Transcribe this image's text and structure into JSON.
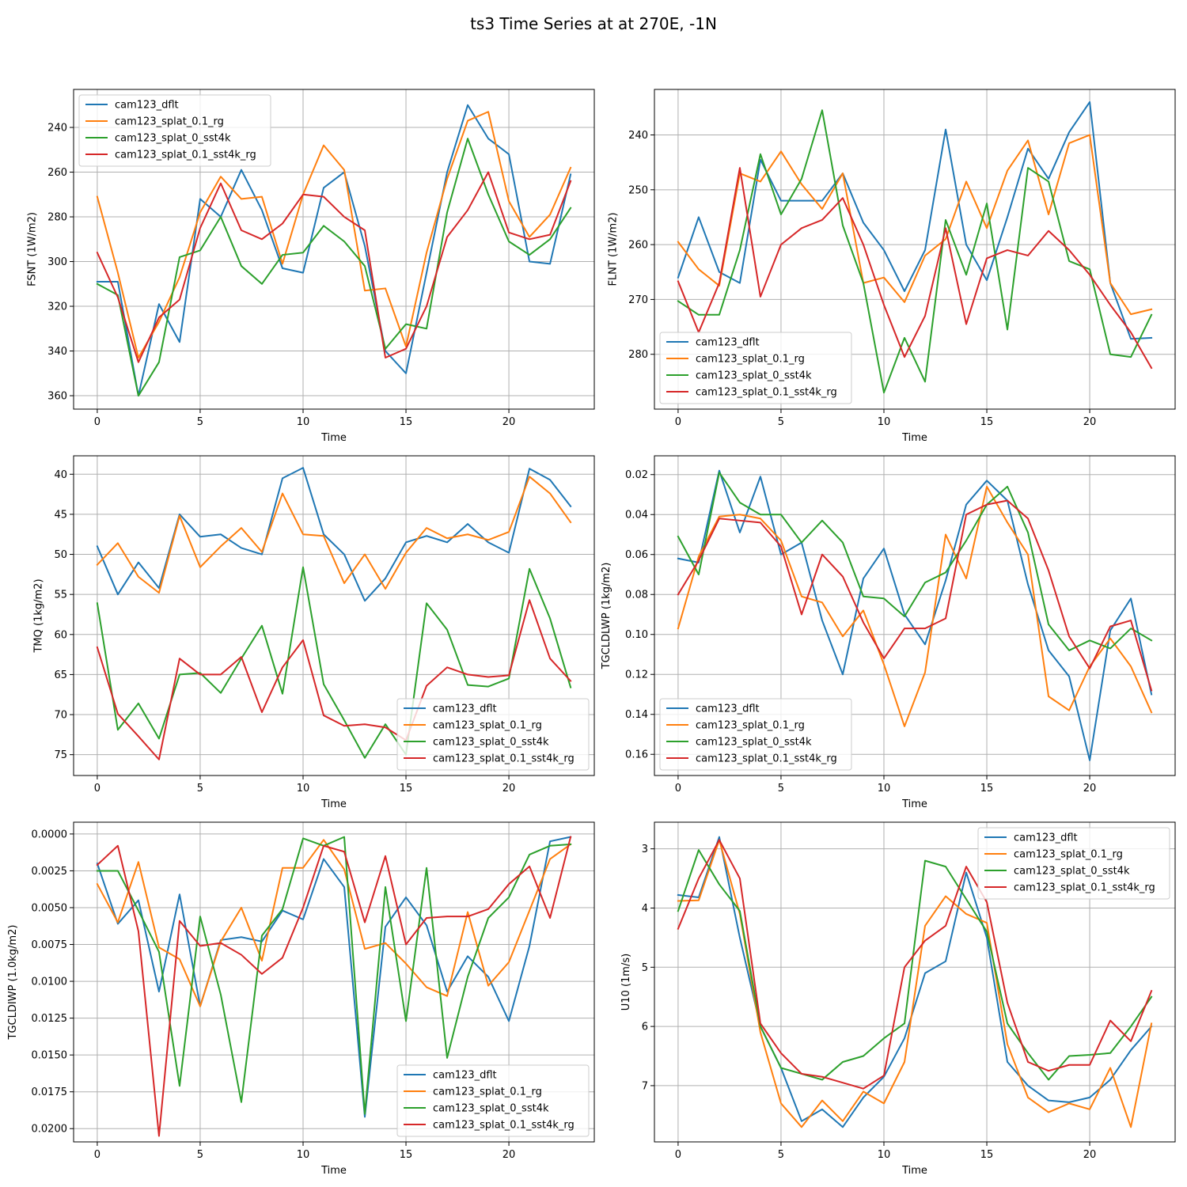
{
  "chart_data": {
    "suptitle": "ts3 Time Series at at 270E, -1N",
    "type": "line",
    "x": [
      0,
      1,
      2,
      3,
      4,
      5,
      6,
      7,
      8,
      9,
      10,
      11,
      12,
      13,
      14,
      15,
      16,
      17,
      18,
      19,
      20,
      21,
      22,
      23
    ],
    "colors": {
      "cam123_dflt": "#1f77b4",
      "cam123_splat_0.1_rg": "#ff7f0e",
      "cam123_splat_0_sst4k": "#2ca02c",
      "cam123_splat_0.1_sst4k_rg": "#d62728"
    },
    "panels": [
      {
        "id": "fsnt",
        "xlabel": "Time",
        "ylabel": "FSNT (1W/m2)",
        "xlim": [
          -1.15,
          24.15
        ],
        "ylim": [
          366,
          223
        ],
        "y_inverted": true,
        "xticks": [
          0,
          5,
          10,
          15,
          20
        ],
        "yticks": [
          240,
          260,
          280,
          300,
          320,
          340,
          360
        ],
        "ytick_labels": [
          "240",
          "260",
          "280",
          "300",
          "320",
          "340",
          "360"
        ],
        "legend_loc": "upper left",
        "series": [
          {
            "name": "cam123_dflt",
            "values": [
              309,
              309,
              360,
              319,
              336,
              272,
              280,
              259,
              277,
              303,
              305,
              267,
              260,
              293,
              340,
              350,
              305,
              260,
              230,
              245,
              252,
              300,
              301,
              261
            ]
          },
          {
            "name": "cam123_splat_0.1_rg",
            "values": [
              271,
              305,
              343,
              327,
              307,
              278,
              262,
              272,
              271,
              301,
              270,
              248,
              259,
              313,
              312,
              338,
              296,
              263,
              237,
              233,
              273,
              289,
              279,
              258
            ]
          },
          {
            "name": "cam123_splat_0_sst4k",
            "values": [
              310,
              315,
              360,
              345,
              298,
              295,
              280,
              302,
              310,
              297,
              296,
              284,
              291,
              302,
              339,
              328,
              330,
              278,
              245,
              270,
              291,
              297,
              290,
              276
            ]
          },
          {
            "name": "cam123_splat_0.1_sst4k_rg",
            "values": [
              296,
              316,
              345,
              325,
              317,
              285,
              265,
              286,
              290,
              283,
              270,
              271,
              280,
              286,
              343,
              339,
              320,
              289,
              277,
              260,
              287,
              290,
              288,
              264
            ]
          }
        ]
      },
      {
        "id": "flnt",
        "xlabel": "Time",
        "ylabel": "FLNT (1W/m2)",
        "xlim": [
          -1.15,
          24.15
        ],
        "ylim": [
          290,
          231.7
        ],
        "y_inverted": true,
        "xticks": [
          0,
          5,
          10,
          15,
          20
        ],
        "yticks": [
          240,
          250,
          260,
          270,
          280
        ],
        "ytick_labels": [
          "240",
          "250",
          "260",
          "270",
          "280"
        ],
        "legend_loc": "lower left",
        "series": [
          {
            "name": "cam123_dflt",
            "values": [
              266,
              255,
              265,
              267,
              244.5,
              252,
              252,
              252,
              247,
              256,
              261,
              268.5,
              261,
              239,
              260,
              266.5,
              255,
              242.5,
              248,
              239.5,
              234,
              267,
              277.2,
              277
            ]
          },
          {
            "name": "cam123_splat_0.1_rg",
            "values": [
              259.5,
              264.5,
              267.5,
              247,
              248.5,
              243,
              249,
              253.5,
              247,
              267,
              266,
              270.5,
              262,
              259,
              248.5,
              257,
              246.5,
              241,
              254.5,
              241.5,
              240,
              267,
              272.7,
              271.8
            ]
          },
          {
            "name": "cam123_splat_0_sst4k",
            "values": [
              270.3,
              272.8,
              272.8,
              261,
              243.5,
              254.5,
              248,
              235.5,
              256.5,
              267,
              287,
              277,
              285,
              255.5,
              265.5,
              252.5,
              275.5,
              246,
              248.5,
              263,
              264.5,
              280,
              280.5,
              272.8
            ]
          },
          {
            "name": "cam123_splat_0.1_sst4k_rg",
            "values": [
              266.7,
              276,
              267,
              246,
              269.5,
              260,
              257,
              255.5,
              251.5,
              260,
              271,
              280.5,
              273,
              257,
              274.5,
              262.5,
              261,
              262,
              257.5,
              261,
              265.5,
              271,
              276,
              282.5
            ]
          }
        ]
      },
      {
        "id": "tmq",
        "xlabel": "Time",
        "ylabel": "TMQ (1kg/m2)",
        "xlim": [
          -1.15,
          24.15
        ],
        "ylim": [
          77.6,
          37.7
        ],
        "y_inverted": true,
        "xticks": [
          0,
          5,
          10,
          15,
          20
        ],
        "yticks": [
          40,
          45,
          50,
          55,
          60,
          65,
          70,
          75
        ],
        "ytick_labels": [
          "40",
          "45",
          "50",
          "55",
          "60",
          "65",
          "70",
          "75"
        ],
        "legend_loc": "lower right",
        "series": [
          {
            "name": "cam123_dflt",
            "values": [
              49,
              55,
              51,
              54.2,
              45,
              47.8,
              47.5,
              49.2,
              50,
              40.5,
              39.2,
              47.5,
              50,
              55.8,
              53,
              48.5,
              47.7,
              48.5,
              46.2,
              48.5,
              49.8,
              39.3,
              40.7,
              44
            ]
          },
          {
            "name": "cam123_splat_0.1_rg",
            "values": [
              51.3,
              48.6,
              52.8,
              54.8,
              45.2,
              51.6,
              49,
              46.7,
              49.7,
              42.4,
              47.5,
              47.7,
              53.6,
              50,
              54.3,
              49.8,
              46.7,
              48,
              47.5,
              48.2,
              47.2,
              40.3,
              42.4,
              46
            ]
          },
          {
            "name": "cam123_splat_0_sst4k",
            "values": [
              56.1,
              71.9,
              68.6,
              73,
              65,
              64.8,
              67.3,
              63,
              58.9,
              67.4,
              51.6,
              66.2,
              70.7,
              75.4,
              71.2,
              75,
              56.1,
              59.4,
              66.3,
              66.5,
              65.5,
              51.8,
              58,
              66.6
            ]
          },
          {
            "name": "cam123_splat_0.1_sst4k_rg",
            "values": [
              61.6,
              69.9,
              72.7,
              75.6,
              63,
              65,
              65,
              62.8,
              69.7,
              64.1,
              60.7,
              70.1,
              71.4,
              71.2,
              71.6,
              73.2,
              66.4,
              64.1,
              65,
              65.3,
              65.1,
              55.7,
              63,
              65.8
            ]
          }
        ]
      },
      {
        "id": "tgcldlwp",
        "xlabel": "Time",
        "ylabel": "TGCLDLWP (1kg/m2)",
        "xlim": [
          -1.15,
          24.15
        ],
        "ylim": [
          0.1706,
          0.0106
        ],
        "y_inverted": true,
        "xticks": [
          0,
          5,
          10,
          15,
          20
        ],
        "yticks": [
          0.02,
          0.04,
          0.06,
          0.08,
          0.1,
          0.12,
          0.14,
          0.16
        ],
        "ytick_labels": [
          "0.02",
          "0.04",
          "0.06",
          "0.08",
          "0.10",
          "0.12",
          "0.14",
          "0.16"
        ],
        "legend_loc": "lower left",
        "series": [
          {
            "name": "cam123_dflt",
            "values": [
              0.062,
              0.064,
              0.018,
              0.049,
              0.021,
              0.06,
              0.054,
              0.093,
              0.12,
              0.072,
              0.057,
              0.09,
              0.105,
              0.073,
              0.035,
              0.023,
              0.033,
              0.075,
              0.108,
              0.121,
              0.163,
              0.098,
              0.082,
              0.13
            ]
          },
          {
            "name": "cam123_splat_0.1_rg",
            "values": [
              0.097,
              0.061,
              0.041,
              0.04,
              0.042,
              0.053,
              0.081,
              0.084,
              0.101,
              0.088,
              0.115,
              0.146,
              0.119,
              0.05,
              0.072,
              0.026,
              0.044,
              0.06,
              0.131,
              0.138,
              0.116,
              0.102,
              0.116,
              0.139
            ]
          },
          {
            "name": "cam123_splat_0_sst4k",
            "values": [
              0.051,
              0.07,
              0.019,
              0.034,
              0.04,
              0.04,
              0.054,
              0.043,
              0.054,
              0.081,
              0.082,
              0.091,
              0.074,
              0.069,
              0.053,
              0.035,
              0.026,
              0.049,
              0.095,
              0.108,
              0.103,
              0.107,
              0.097,
              0.103
            ]
          },
          {
            "name": "cam123_splat_0.1_sst4k_rg",
            "values": [
              0.08,
              0.063,
              0.042,
              0.043,
              0.044,
              0.056,
              0.09,
              0.06,
              0.071,
              0.094,
              0.112,
              0.097,
              0.097,
              0.092,
              0.04,
              0.035,
              0.033,
              0.042,
              0.068,
              0.101,
              0.117,
              0.096,
              0.093,
              0.128
            ]
          }
        ]
      },
      {
        "id": "tgcldiwp",
        "xlabel": "Time",
        "ylabel": "TGCLDIWP (1.0kg/m2)",
        "xlim": [
          -1.15,
          24.15
        ],
        "ylim": [
          0.0209,
          -0.0008
        ],
        "y_inverted": true,
        "xticks": [
          0,
          5,
          10,
          15,
          20
        ],
        "yticks": [
          0.0,
          0.0025,
          0.005,
          0.0075,
          0.01,
          0.0125,
          0.015,
          0.0175,
          0.02
        ],
        "ytick_labels": [
          "0.0000",
          "0.0025",
          "0.0050",
          "0.0075",
          "0.0100",
          "0.0125",
          "0.0150",
          "0.0175",
          "0.0200"
        ],
        "legend_loc": "lower right",
        "series": [
          {
            "name": "cam123_dflt",
            "values": [
              0.002,
              0.0061,
              0.0045,
              0.0107,
              0.0041,
              0.0117,
              0.0072,
              0.007,
              0.0073,
              0.0052,
              0.0058,
              0.0017,
              0.0036,
              0.0192,
              0.0063,
              0.0043,
              0.0062,
              0.0107,
              0.0083,
              0.0097,
              0.0127,
              0.0076,
              0.0005,
              0.0002
            ]
          },
          {
            "name": "cam123_splat_0.1_rg",
            "values": [
              0.0034,
              0.006,
              0.0019,
              0.0077,
              0.0085,
              0.0117,
              0.0073,
              0.005,
              0.0086,
              0.0023,
              0.0023,
              0.0004,
              0.0024,
              0.0078,
              0.0074,
              0.0088,
              0.0104,
              0.011,
              0.0053,
              0.0103,
              0.0087,
              0.0052,
              0.0017,
              0.0007
            ]
          },
          {
            "name": "cam123_splat_0_sst4k",
            "values": [
              0.0025,
              0.0025,
              0.0052,
              0.008,
              0.0171,
              0.0056,
              0.0109,
              0.0182,
              0.0069,
              0.0051,
              0.0003,
              0.0008,
              0.0002,
              0.019,
              0.0036,
              0.0127,
              0.0023,
              0.0152,
              0.0097,
              0.0057,
              0.0043,
              0.0014,
              0.0008,
              0.0007
            ]
          },
          {
            "name": "cam123_splat_0.1_sst4k_rg",
            "values": [
              0.0021,
              0.0008,
              0.0066,
              0.0205,
              0.0059,
              0.0076,
              0.0074,
              0.0082,
              0.0095,
              0.0084,
              0.005,
              0.0008,
              0.0012,
              0.006,
              0.0015,
              0.0075,
              0.0057,
              0.0056,
              0.0056,
              0.0051,
              0.0034,
              0.0022,
              0.0057,
              0.0002
            ]
          }
        ]
      },
      {
        "id": "u10",
        "xlabel": "Time",
        "ylabel": "U10 (1m/s)",
        "xlim": [
          -1.15,
          24.15
        ],
        "ylim": [
          7.95,
          2.55
        ],
        "y_inverted": true,
        "xticks": [
          0,
          5,
          10,
          15,
          20
        ],
        "yticks": [
          3,
          4,
          5,
          6,
          7
        ],
        "ytick_labels": [
          "3",
          "4",
          "5",
          "6",
          "7"
        ],
        "legend_loc": "upper right",
        "series": [
          {
            "name": "cam123_dflt",
            "values": [
              3.78,
              3.82,
              2.8,
              4.5,
              6.0,
              6.7,
              7.6,
              7.4,
              7.7,
              7.2,
              6.85,
              6.2,
              5.1,
              4.9,
              3.4,
              4.5,
              6.6,
              7.0,
              7.25,
              7.28,
              7.2,
              6.9,
              6.4,
              6.0
            ]
          },
          {
            "name": "cam123_splat_0.1_rg",
            "values": [
              3.88,
              3.87,
              2.85,
              4.1,
              6.1,
              7.3,
              7.7,
              7.25,
              7.6,
              7.1,
              7.3,
              6.6,
              4.3,
              3.8,
              4.1,
              4.25,
              6.3,
              7.2,
              7.45,
              7.3,
              7.4,
              6.7,
              7.7,
              5.95
            ]
          },
          {
            "name": "cam123_splat_0_sst4k",
            "values": [
              4.05,
              3.02,
              3.6,
              4.05,
              6.0,
              6.7,
              6.8,
              6.9,
              6.6,
              6.5,
              6.2,
              5.95,
              3.2,
              3.3,
              3.85,
              4.4,
              5.95,
              6.45,
              6.9,
              6.5,
              6.48,
              6.45,
              6.0,
              5.5
            ]
          },
          {
            "name": "cam123_splat_0.1_sst4k_rg",
            "values": [
              4.35,
              3.5,
              2.85,
              3.5,
              5.95,
              6.45,
              6.8,
              6.85,
              6.95,
              7.05,
              6.83,
              5.0,
              4.55,
              4.3,
              3.3,
              3.9,
              5.6,
              6.6,
              6.75,
              6.65,
              6.65,
              5.9,
              6.25,
              5.4
            ]
          }
        ]
      }
    ]
  }
}
